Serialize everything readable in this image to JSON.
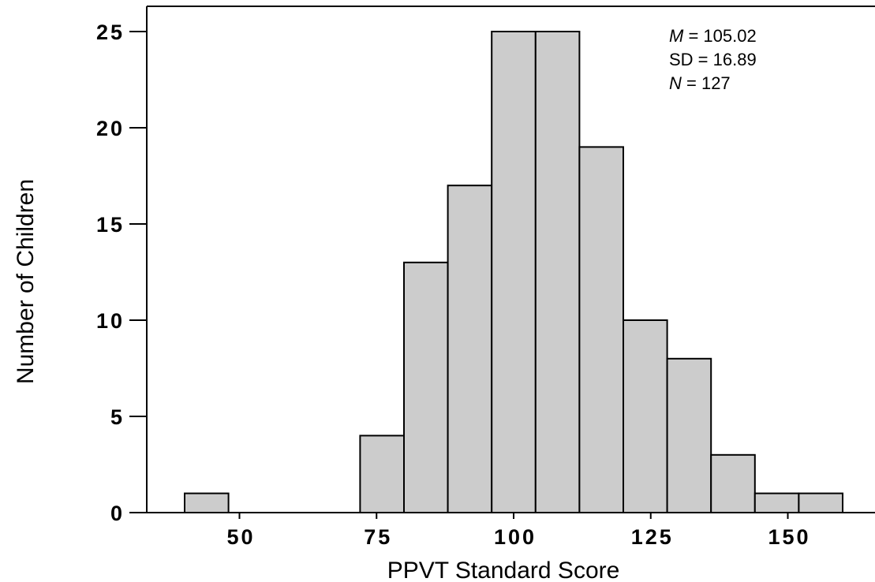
{
  "chart_data": {
    "type": "bar",
    "subtype": "histogram",
    "title": "",
    "xlabel": "PPVT Standard Score",
    "ylabel": "Number of Children",
    "bin_width": 8,
    "bins": [
      {
        "x0": 40,
        "x1": 48,
        "count": 1
      },
      {
        "x0": 48,
        "x1": 56,
        "count": 0
      },
      {
        "x0": 56,
        "x1": 64,
        "count": 0
      },
      {
        "x0": 64,
        "x1": 72,
        "count": 0
      },
      {
        "x0": 72,
        "x1": 80,
        "count": 4
      },
      {
        "x0": 80,
        "x1": 88,
        "count": 13
      },
      {
        "x0": 88,
        "x1": 96,
        "count": 17
      },
      {
        "x0": 96,
        "x1": 104,
        "count": 25
      },
      {
        "x0": 104,
        "x1": 112,
        "count": 25
      },
      {
        "x0": 112,
        "x1": 120,
        "count": 19
      },
      {
        "x0": 120,
        "x1": 128,
        "count": 10
      },
      {
        "x0": 128,
        "x1": 136,
        "count": 8
      },
      {
        "x0": 136,
        "x1": 144,
        "count": 3
      },
      {
        "x0": 144,
        "x1": 152,
        "count": 1
      },
      {
        "x0": 152,
        "x1": 160,
        "count": 1
      }
    ],
    "xticks": [
      "50",
      "75",
      "100",
      "125",
      "150"
    ],
    "xtick_values": [
      50,
      75,
      100,
      125,
      150
    ],
    "yticks": [
      "0",
      "5",
      "10",
      "15",
      "20",
      "25"
    ],
    "ytick_values": [
      0,
      5,
      10,
      15,
      20,
      25
    ],
    "xlim": [
      26,
      166
    ],
    "ylim": [
      0,
      26.3
    ],
    "grid": false,
    "bar_fill": "#cccccc",
    "bar_stroke": "#000000",
    "stats": {
      "mean_label": "M",
      "mean_text": " = 105.02",
      "sd_text": "SD = 16.89",
      "n_label": "N",
      "n_text": " = 127"
    }
  }
}
